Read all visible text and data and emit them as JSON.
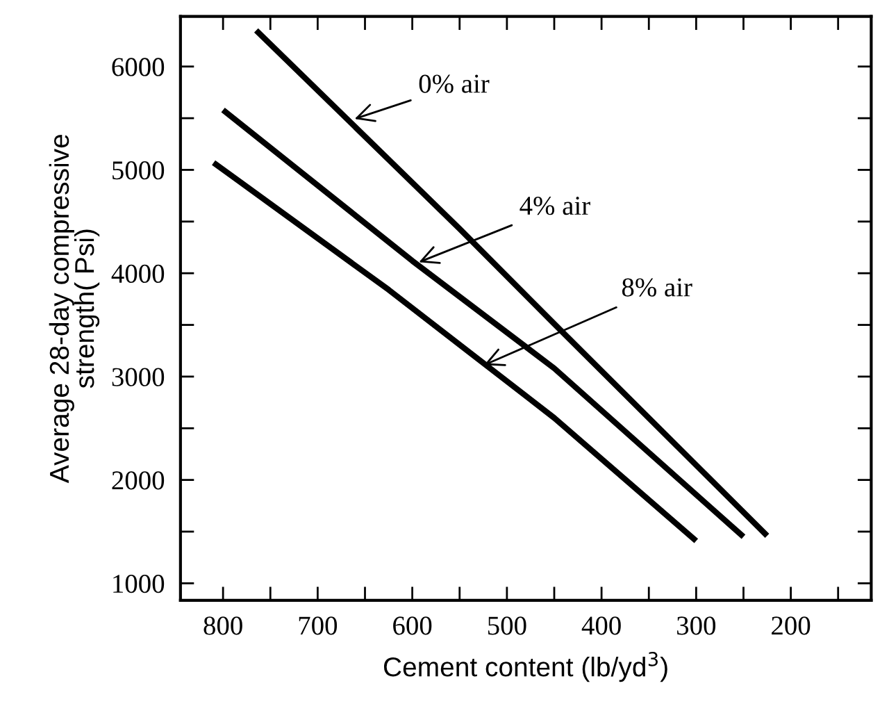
{
  "chart_data": {
    "type": "line",
    "xlabel": "Cement content (lb/yd$^{3}$)",
    "ylabel": "Average 28-day compressive\nstrength( Psi)",
    "series": [
      {
        "color": "#000000",
        "x": [
          765,
          550,
          450,
          225
        ],
        "values": [
          6350,
          4430,
          3510,
          1460
        ]
      },
      {
        "color": "#000000",
        "x": [
          800,
          600,
          450,
          250
        ],
        "values": [
          5580,
          4120,
          3080,
          1450
        ]
      },
      {
        "color": "#000000",
        "x": [
          810,
          625,
          450,
          300
        ],
        "values": [
          5070,
          3840,
          2600,
          1410
        ]
      }
    ],
    "annotations": [
      {
        "text": "0% air",
        "x": 661,
        "y": 5493
      },
      {
        "text": "4% air",
        "x": 593,
        "y": 4107
      },
      {
        "text": "8% air",
        "x": 524,
        "y": 3112
      }
    ],
    "xlim": [
      845,
      115
    ],
    "ylim": [
      835,
      6485
    ],
    "xticks": [
      800,
      {
        "value": 750,
        "label": null
      },
      700,
      {
        "value": 650,
        "label": null
      },
      600,
      {
        "value": 550,
        "label": null
      },
      500,
      {
        "value": 450,
        "label": null
      },
      400,
      {
        "value": 350,
        "label": null
      },
      300,
      {
        "value": 250,
        "label": null
      },
      200,
      {
        "value": 150,
        "label": null
      }
    ],
    "yticks": [
      1000,
      {
        "value": 1500,
        "label": null
      },
      2000,
      {
        "value": 2500,
        "label": null
      },
      3000,
      {
        "value": 3500,
        "label": null
      },
      4000,
      {
        "value": 4500,
        "label": null
      },
      5000,
      {
        "value": 5500,
        "label": null
      },
      6000
    ],
    "grid": false,
    "legend": false,
    "marker": "none",
    "line_style": "solid"
  }
}
